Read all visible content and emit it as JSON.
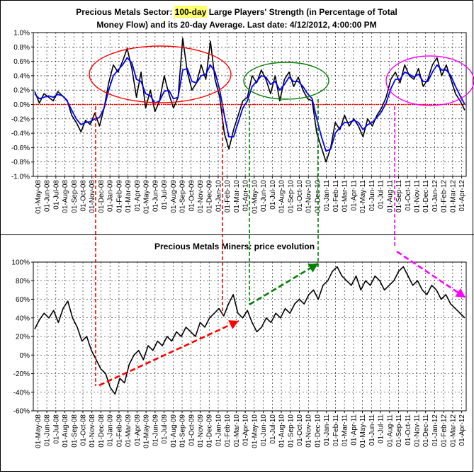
{
  "chart_data": [
    {
      "type": "line",
      "title_pre": "Precious Metals Sector: ",
      "title_hl": "100-day",
      "title_post": " Large Players' Strength (in Percentage of Total",
      "title_line2": "Money Flow) and its 20-day Average. Last date: 4/12/2012, 4:00:00 PM",
      "ylim": [
        -1.0,
        1.0
      ],
      "yticks": [
        "1.0%",
        "0.8%",
        "0.6%",
        "0.4%",
        "0.2%",
        "0.0%",
        "-0.2%",
        "-0.4%",
        "-0.6%",
        "-0.8%",
        "-1.0%"
      ],
      "xticks": [
        "01-May-08",
        "01-Jun-08",
        "01-Jul-08",
        "01-Aug-08",
        "01-Sep-08",
        "01-Oct-08",
        "01-Nov-08",
        "01-Dec-08",
        "01-Jan-09",
        "01-Feb-09",
        "01-Mar-09",
        "01-Apr-09",
        "01-May-09",
        "01-Jun-09",
        "01-Jul-09",
        "01-Aug-09",
        "01-Sep-09",
        "01-Oct-09",
        "01-Nov-09",
        "01-Dec-09",
        "01-Jan-10",
        "01-Feb-10",
        "01-Mar-10",
        "01-Apr-10",
        "01-May-10",
        "01-Jun-10",
        "01-Jul-10",
        "01-Aug-10",
        "01-Sep-10",
        "01-Oct-10",
        "01-Nov-10",
        "01-Dec-10",
        "01-Jan-11",
        "01-Feb-11",
        "01-Mar-11",
        "01-Apr-11",
        "01-May-11",
        "01-Jun-11",
        "01-Jul-11",
        "01-Aug-11",
        "01-Sep-11",
        "01-Oct-11",
        "01-Nov-11",
        "01-Dec-11",
        "01-Jan-12",
        "01-Feb-12",
        "01-Mar-12",
        "01-Apr-12"
      ],
      "series": [
        {
          "color": "#000000",
          "values": [
            0.18,
            0.02,
            0.15,
            0.1,
            0.05,
            0.18,
            0.12,
            0.06,
            -0.15,
            -0.25,
            -0.38,
            -0.22,
            -0.28,
            -0.12,
            -0.3,
            -0.05,
            0.3,
            0.55,
            0.45,
            0.6,
            0.78,
            0.5,
            0.1,
            0.45,
            -0.05,
            0.2,
            -0.1,
            0.05,
            0.4,
            0.15,
            -0.05,
            0.1,
            0.92,
            0.45,
            0.2,
            0.3,
            0.55,
            0.35,
            0.88,
            0.35,
            0.1,
            -0.4,
            -0.62,
            -0.35,
            -0.15,
            0.05,
            0.1,
            0.4,
            0.3,
            0.48,
            0.35,
            0.15,
            0.4,
            0.05,
            0.35,
            0.45,
            0.25,
            0.38,
            0.2,
            0.08,
            0.05,
            -0.4,
            -0.6,
            -0.8,
            -0.6,
            -0.25,
            -0.35,
            -0.15,
            -0.3,
            -0.2,
            -0.3,
            -0.45,
            -0.2,
            -0.3,
            -0.15,
            -0.05,
            0.1,
            0.35,
            0.45,
            0.3,
            0.55,
            0.4,
            0.35,
            0.5,
            0.25,
            0.35,
            0.55,
            0.65,
            0.4,
            0.55,
            0.35,
            0.15,
            0.05,
            -0.08
          ]
        },
        {
          "color": "#0000ff",
          "values": [
            0.15,
            0.08,
            0.1,
            0.12,
            0.1,
            0.14,
            0.12,
            0.05,
            -0.08,
            -0.2,
            -0.28,
            -0.25,
            -0.24,
            -0.2,
            -0.18,
            -0.05,
            0.2,
            0.4,
            0.48,
            0.55,
            0.65,
            0.58,
            0.35,
            0.32,
            0.15,
            0.12,
            0.02,
            0.05,
            0.18,
            0.2,
            0.08,
            0.1,
            0.48,
            0.5,
            0.32,
            0.3,
            0.4,
            0.42,
            0.55,
            0.45,
            0.2,
            -0.15,
            -0.45,
            -0.45,
            -0.25,
            -0.05,
            0.05,
            0.25,
            0.32,
            0.4,
            0.38,
            0.28,
            0.32,
            0.2,
            0.28,
            0.38,
            0.32,
            0.32,
            0.25,
            0.15,
            0.08,
            -0.2,
            -0.45,
            -0.65,
            -0.62,
            -0.4,
            -0.32,
            -0.25,
            -0.25,
            -0.22,
            -0.25,
            -0.35,
            -0.28,
            -0.25,
            -0.18,
            -0.1,
            0.02,
            0.22,
            0.35,
            0.35,
            0.45,
            0.42,
            0.38,
            0.42,
            0.32,
            0.32,
            0.45,
            0.55,
            0.48,
            0.48,
            0.4,
            0.25,
            0.12,
            0.0
          ]
        }
      ]
    },
    {
      "type": "line",
      "title": "Precious Metals Miners: price evolution",
      "ylim": [
        -60,
        100
      ],
      "yticks": [
        "100%",
        "80%",
        "60%",
        "40%",
        "20%",
        "0%",
        "-20%",
        "-40%",
        "-60%"
      ],
      "xticks": [
        "01-May-08",
        "01-Jun-08",
        "01-Jul-08",
        "01-Aug-08",
        "01-Sep-08",
        "01-Oct-08",
        "01-Nov-08",
        "01-Dec-08",
        "01-Jan-09",
        "01-Feb-09",
        "01-Mar-09",
        "01-Apr-09",
        "01-May-09",
        "01-Jun-09",
        "01-Jul-09",
        "01-Aug-09",
        "01-Sep-09",
        "01-Oct-09",
        "01-Nov-09",
        "01-Dec-09",
        "01-Jan-10",
        "01-Feb-10",
        "01-Mar-10",
        "01-Apr-10",
        "01-May-10",
        "01-Jun-10",
        "01-Jul-10",
        "01-Aug-10",
        "01-Sep-10",
        "01-Oct-10",
        "01-Nov-10",
        "01-Dec-10",
        "01-Jan-11",
        "01-Feb-11",
        "01-Mar-11",
        "01-Apr-11",
        "01-May-11",
        "01-Jun-11",
        "01-Jul-11",
        "01-Aug-11",
        "01-Sep-11",
        "01-Oct-11",
        "01-Nov-11",
        "01-Dec-11",
        "01-Jan-12",
        "01-Feb-12",
        "01-Mar-12",
        "01-Apr-12"
      ],
      "series": [
        {
          "color": "#000000",
          "values": [
            28,
            38,
            45,
            40,
            48,
            35,
            50,
            58,
            40,
            30,
            15,
            20,
            5,
            -5,
            -15,
            -20,
            -35,
            -42,
            -25,
            -30,
            -10,
            0,
            5,
            -5,
            10,
            5,
            15,
            10,
            20,
            15,
            25,
            20,
            30,
            25,
            20,
            35,
            30,
            40,
            45,
            50,
            42,
            55,
            65,
            45,
            40,
            48,
            35,
            25,
            30,
            40,
            35,
            45,
            40,
            50,
            45,
            55,
            60,
            55,
            65,
            70,
            60,
            75,
            80,
            90,
            95,
            85,
            80,
            75,
            85,
            70,
            80,
            75,
            85,
            80,
            70,
            75,
            80,
            90,
            95,
            85,
            75,
            80,
            70,
            65,
            75,
            70,
            60,
            65,
            55,
            50,
            45,
            40
          ]
        }
      ]
    }
  ],
  "annotations": {
    "colors": [
      "#ff0000",
      "#008000",
      "#ff00ff"
    ]
  }
}
